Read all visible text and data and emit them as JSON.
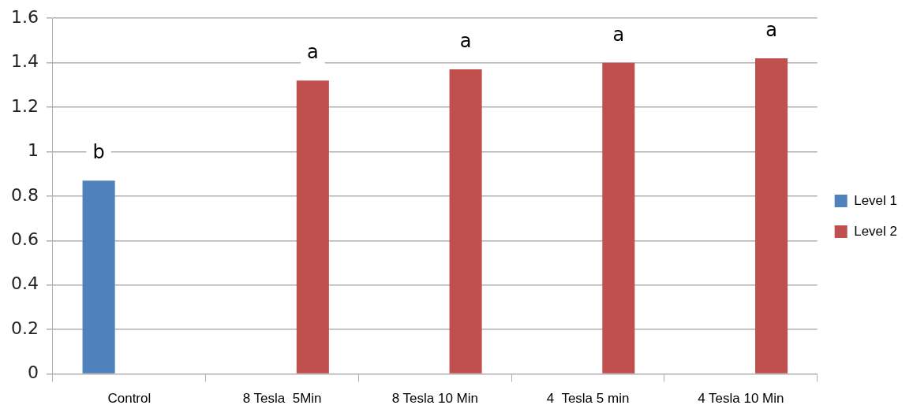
{
  "chart_data": {
    "type": "bar",
    "categories": [
      "Control",
      "8 Tesla  5Min",
      "8 Tesla 10 Min",
      "4  Tesla 5 min",
      "4 Tesla 10 Min"
    ],
    "series": [
      {
        "name": "Level 1",
        "color": "#4f81bd",
        "values": [
          0.87,
          null,
          null,
          null,
          null
        ]
      },
      {
        "name": "Level 2",
        "color": "#c0504d",
        "values": [
          null,
          1.32,
          1.37,
          1.4,
          1.42
        ]
      }
    ],
    "ylim": [
      0,
      1.6
    ],
    "yticks": [
      0,
      {
        "value": 0.2,
        "label": "0.2"
      },
      {
        "value": 0.4,
        "label": "0.4"
      },
      {
        "value": 0.6,
        "label": "0.6"
      },
      {
        "value": 0.8,
        "label": "0.8"
      },
      1,
      {
        "value": 1.2,
        "label": "1.2"
      },
      {
        "value": 1.4,
        "label": "1.4"
      },
      {
        "value": 1.6,
        "label": "1.6"
      }
    ],
    "grid": "y",
    "legend": "right",
    "annotations": [
      "b",
      "a",
      "a",
      "a",
      "a"
    ]
  }
}
